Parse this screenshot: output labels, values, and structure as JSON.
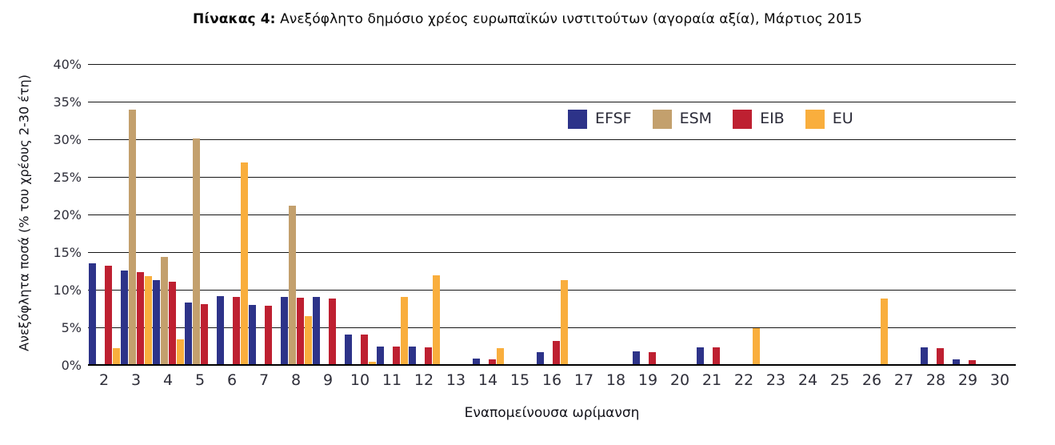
{
  "title": {
    "prefix": "Πίνακας 4:",
    "text": "Ανεξόφλητο δημόσιο χρέος ευρωπαϊκών ινστιτούτων (αγοραία αξία), Μάρτιος 2015"
  },
  "axes": {
    "y_title": "Ανεξόφλητα ποσά (% του χρέους 2-30 έτη)",
    "x_title": "Εναπομείνουσα ωρίμανση"
  },
  "chart_data": {
    "type": "bar",
    "title": "Πίνακας 4: Ανεξόφλητο δημόσιο χρέος ευρωπαϊκών ινστιτούτων (αγοραία αξία), Μάρτιος 2015",
    "xlabel": "Εναπομείνουσα ωρίμανση",
    "ylabel": "Ανεξόφλητα ποσά (% του χρέους 2-30 έτη)",
    "ylim": [
      0,
      40
    ],
    "y_tick_step": 5,
    "y_tick_suffix": "%",
    "grid": true,
    "legend_position": "top-right-inside",
    "categories": [
      2,
      3,
      4,
      5,
      6,
      7,
      8,
      9,
      10,
      11,
      12,
      13,
      14,
      15,
      16,
      17,
      18,
      19,
      20,
      21,
      22,
      23,
      24,
      25,
      26,
      27,
      28,
      29,
      30
    ],
    "series": [
      {
        "name": "EFSF",
        "color": "#2D3389",
        "values": [
          13.6,
          12.7,
          11.4,
          8.4,
          9.3,
          8.1,
          9.2,
          9.1,
          4.2,
          2.6,
          2.6,
          0,
          1.0,
          0,
          1.8,
          0,
          0,
          1.9,
          0,
          2.5,
          0,
          0,
          0,
          0,
          0,
          0,
          2.5,
          0.8,
          0
        ]
      },
      {
        "name": "ESM",
        "color": "#C3A06D",
        "values": [
          0,
          34.0,
          14.5,
          30.2,
          0,
          0,
          21.3,
          0,
          0,
          0,
          0,
          0,
          0,
          0,
          0,
          0,
          0,
          0,
          0,
          0,
          0,
          0,
          0,
          0,
          0,
          0,
          0,
          0,
          0
        ]
      },
      {
        "name": "EIB",
        "color": "#BE2031",
        "values": [
          13.3,
          12.5,
          11.2,
          8.2,
          9.2,
          8.0,
          9.0,
          8.9,
          4.1,
          2.6,
          2.5,
          0,
          0.9,
          0,
          3.3,
          0,
          0,
          1.8,
          0,
          2.4,
          0,
          0,
          0,
          0,
          0,
          0,
          2.3,
          0.7,
          0
        ]
      },
      {
        "name": "EU",
        "color": "#F9AE3D",
        "values": [
          2.3,
          11.9,
          3.5,
          0.2,
          27.0,
          0.2,
          6.6,
          0,
          0.5,
          9.2,
          12.0,
          0,
          2.3,
          0,
          11.4,
          0,
          0,
          0,
          0,
          0,
          5.0,
          0,
          0,
          0,
          8.9,
          0,
          0,
          0,
          0
        ]
      }
    ]
  }
}
